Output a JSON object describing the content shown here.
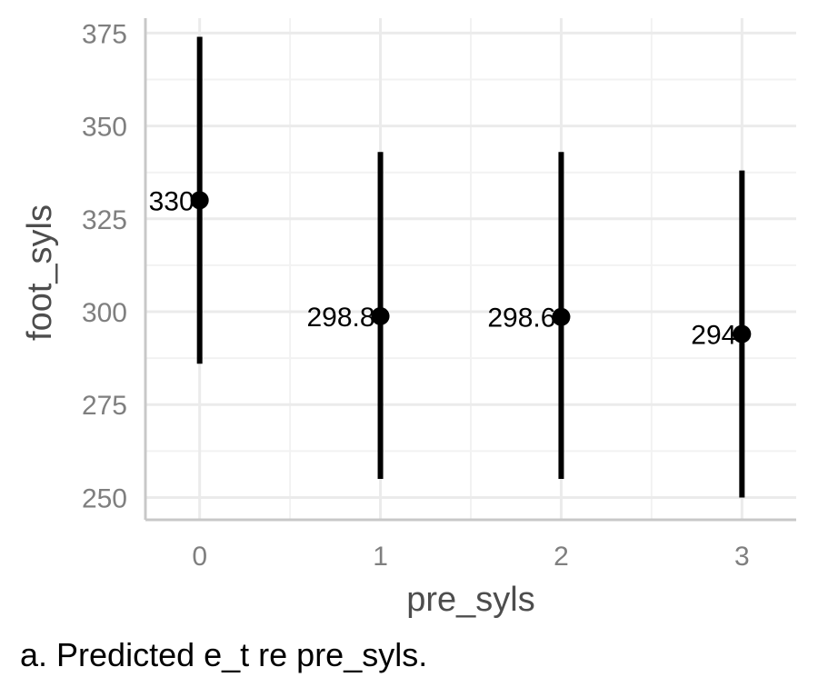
{
  "chart_data": {
    "type": "scatter",
    "subtype": "point-with-error-bars",
    "x": [
      0,
      1,
      2,
      3
    ],
    "y": [
      330,
      298.8,
      298.6,
      294
    ],
    "lower": [
      286,
      255,
      255,
      250
    ],
    "upper": [
      374,
      343,
      343,
      338
    ],
    "data_labels": [
      "330",
      "298.8",
      "298.6",
      "294"
    ],
    "xlabel": "pre_syls",
    "ylabel": "foot_syls",
    "x_ticks": [
      "0",
      "1",
      "2",
      "3"
    ],
    "y_ticks": [
      "250",
      "275",
      "300",
      "325",
      "350",
      "375"
    ],
    "xlim": [
      -0.3,
      3.3
    ],
    "ylim": [
      244,
      379
    ],
    "grid": true,
    "colors": {
      "points": "#000000",
      "grid_major": "#ebebeb",
      "grid_minor": "#f2f2f2",
      "axis": "#c8c8c8"
    }
  },
  "caption": "a. Predicted e_t re pre_syls."
}
